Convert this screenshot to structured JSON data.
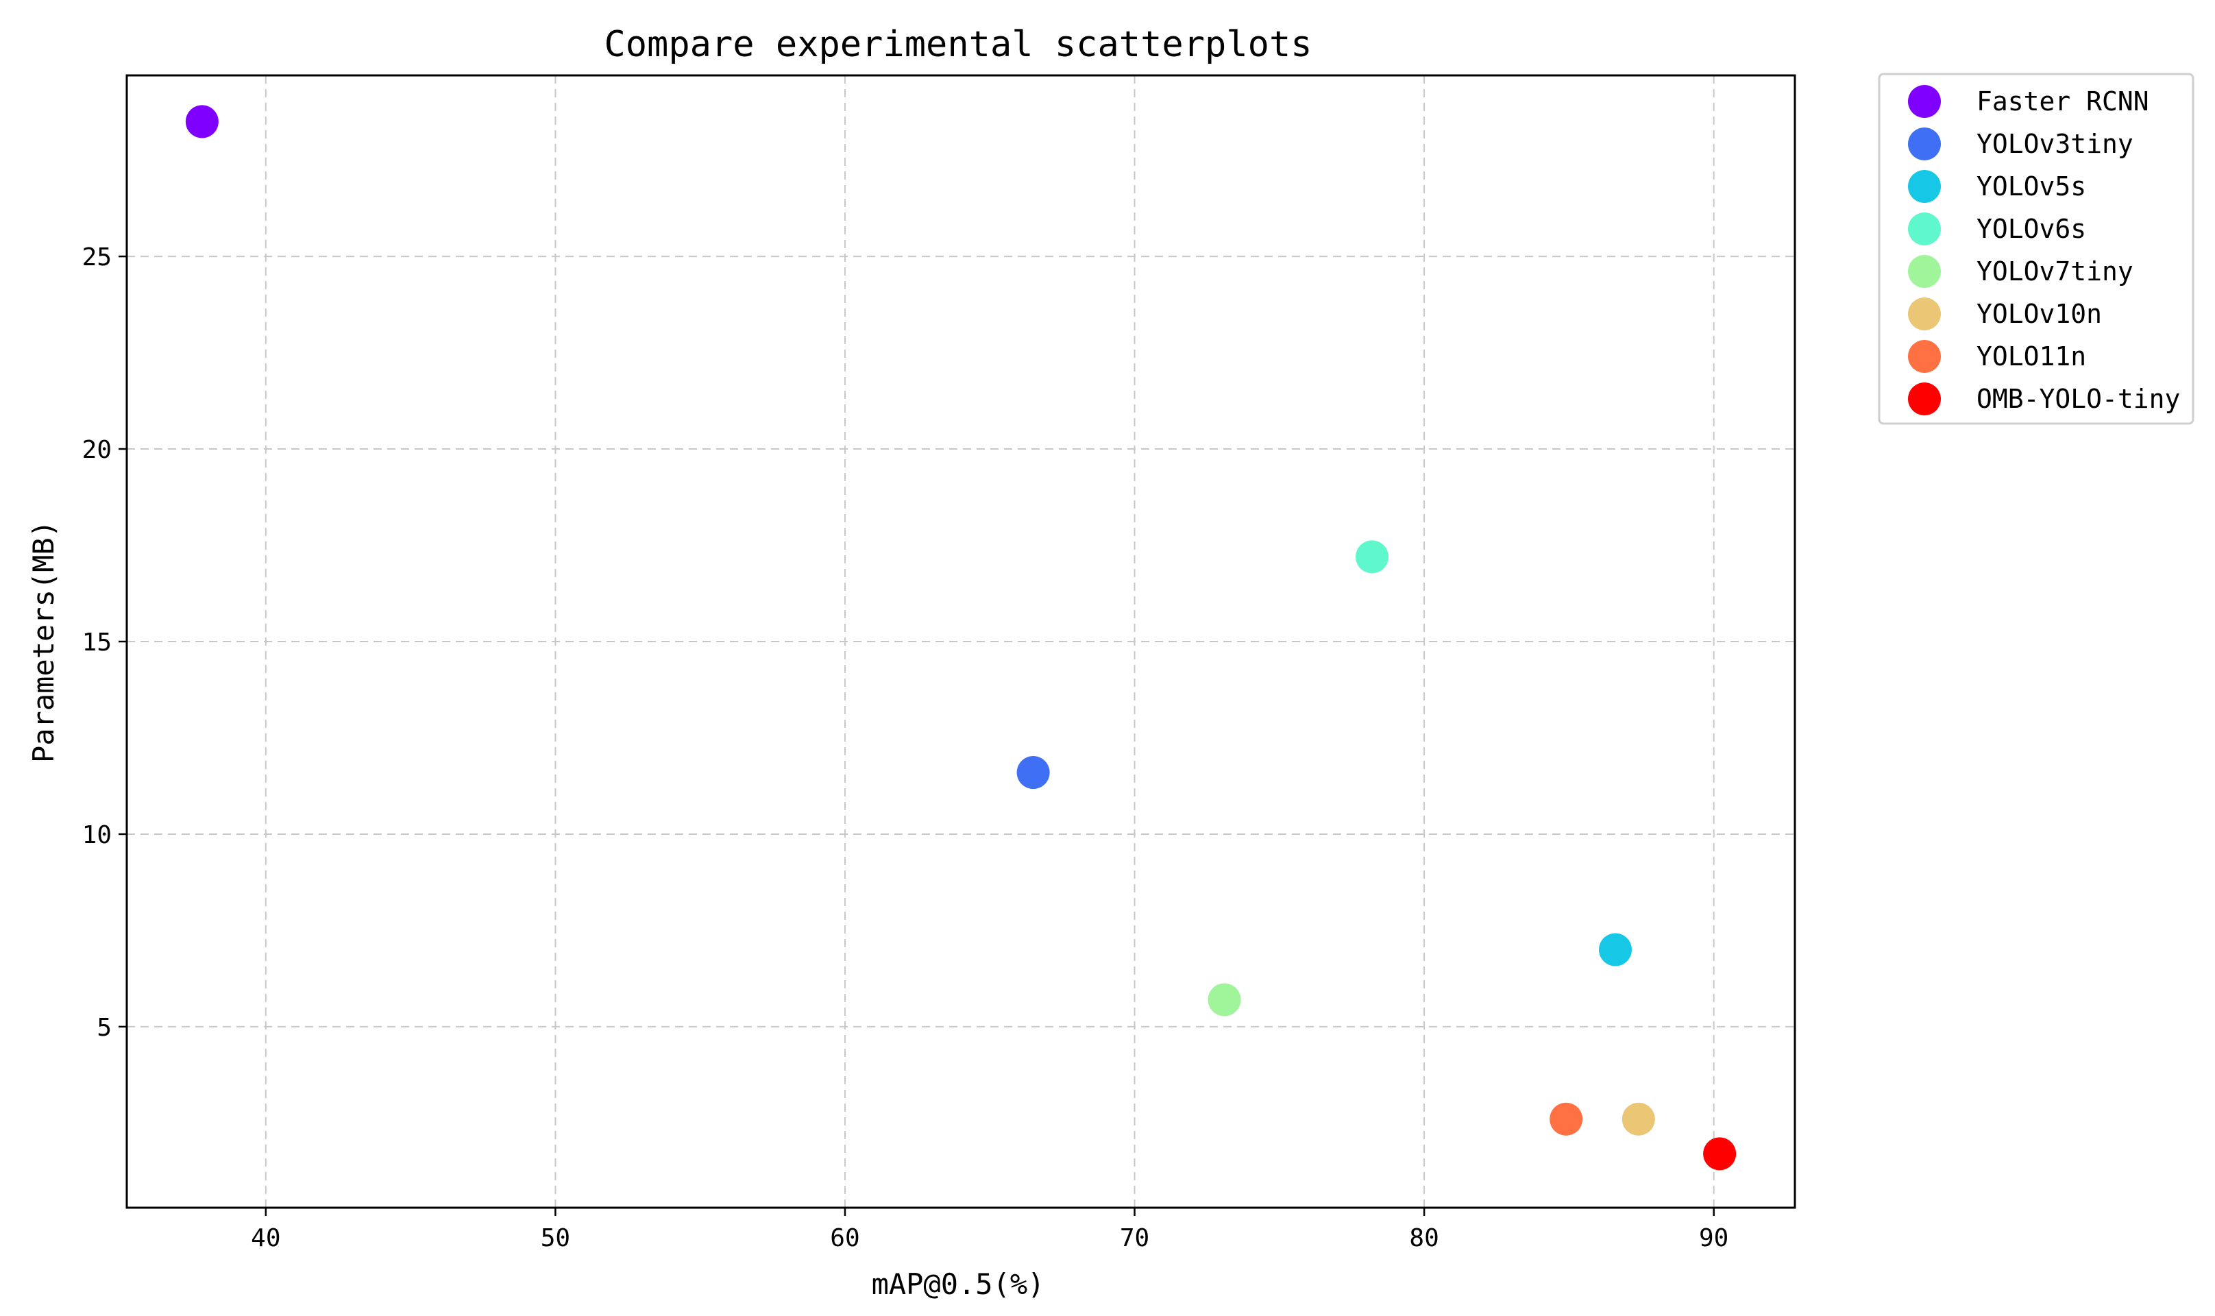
{
  "chart_data": {
    "type": "scatter",
    "title": "Compare experimental scatterplots",
    "xlabel": "mAP@0.5(%)",
    "ylabel": "Parameters(MB)",
    "xlim": [
      35.2,
      92.8
    ],
    "ylim": [
      0.3,
      29.7
    ],
    "xticks": [
      40,
      50,
      60,
      70,
      80,
      90
    ],
    "yticks": [
      5,
      10,
      15,
      20,
      25
    ],
    "grid": true,
    "legend_position": "outside-right-top",
    "series": [
      {
        "name": "Faster RCNN",
        "color": "#8000ff",
        "x": 37.8,
        "y": 28.5
      },
      {
        "name": "YOLOv3tiny",
        "color": "#3f6ff4",
        "x": 66.5,
        "y": 11.6
      },
      {
        "name": "YOLOv5s",
        "color": "#17c8e6",
        "x": 86.6,
        "y": 7.0
      },
      {
        "name": "YOLOv6s",
        "color": "#5ff8cc",
        "x": 78.2,
        "y": 17.2
      },
      {
        "name": "YOLOv7tiny",
        "color": "#a0f59a",
        "x": 73.1,
        "y": 5.7
      },
      {
        "name": "YOLOv10n",
        "color": "#eac675",
        "x": 87.4,
        "y": 2.6
      },
      {
        "name": "YOLO11n",
        "color": "#ff7043",
        "x": 84.9,
        "y": 2.6
      },
      {
        "name": "OMB-YOLO-tiny",
        "color": "#ff0000",
        "x": 90.2,
        "y": 1.7
      }
    ]
  }
}
